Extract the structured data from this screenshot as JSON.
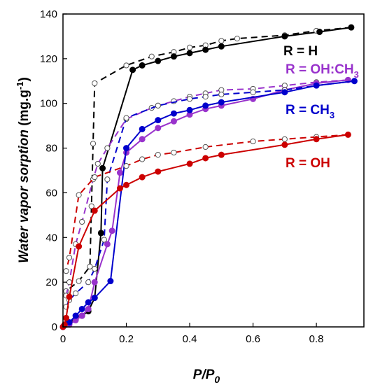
{
  "chart_data": {
    "type": "line",
    "xlabel": "P/P",
    "xlabel_sub": "0",
    "ylabel": "Water vapor sorption",
    "ylabel_unit_pre": "(mg.g",
    "ylabel_unit_sup": "-1",
    "ylabel_unit_post": ")",
    "xlim": [
      0,
      0.95
    ],
    "ylim": [
      0,
      140
    ],
    "xticks": [
      "0",
      "0.2",
      "0.4",
      "0.6",
      "0.8"
    ],
    "xtick_values": [
      0,
      0.2,
      0.4,
      0.6,
      0.8
    ],
    "yticks": [
      "0",
      "20",
      "40",
      "60",
      "80",
      "100",
      "120",
      "140"
    ],
    "ytick_values": [
      0,
      20,
      40,
      60,
      80,
      100,
      120,
      140
    ],
    "grid": false,
    "legend": "annotations",
    "series": [
      {
        "name": "R = H",
        "name_main": "R = H",
        "name_sub": "",
        "name_tail": "",
        "color": "#000000",
        "adsorption": [
          [
            0,
            0
          ],
          [
            0.01,
            1
          ],
          [
            0.02,
            2
          ],
          [
            0.04,
            3.5
          ],
          [
            0.06,
            5
          ],
          [
            0.08,
            7
          ],
          [
            0.1,
            13
          ],
          [
            0.12,
            42
          ],
          [
            0.125,
            71
          ],
          [
            0.22,
            115
          ],
          [
            0.25,
            117
          ],
          [
            0.3,
            119
          ],
          [
            0.35,
            121
          ],
          [
            0.4,
            122.5
          ],
          [
            0.45,
            124
          ],
          [
            0.5,
            125.5
          ],
          [
            0.7,
            130
          ],
          [
            0.81,
            132
          ],
          [
            0.91,
            134
          ]
        ],
        "desorption": [
          [
            0.91,
            134
          ],
          [
            0.8,
            132.5
          ],
          [
            0.7,
            130.5
          ],
          [
            0.55,
            129
          ],
          [
            0.5,
            128
          ],
          [
            0.45,
            126
          ],
          [
            0.4,
            125
          ],
          [
            0.35,
            123
          ],
          [
            0.28,
            121
          ],
          [
            0.2,
            117
          ],
          [
            0.1,
            109
          ],
          [
            0.095,
            82
          ],
          [
            0.09,
            54
          ],
          [
            0.085,
            27
          ],
          [
            0.05,
            20.5
          ],
          [
            0.01,
            16
          ]
        ]
      },
      {
        "name": "R = OH:CH3",
        "name_main": "R = OH:CH",
        "name_sub": "3",
        "name_tail": "",
        "color": "#9933cc",
        "adsorption": [
          [
            0,
            0
          ],
          [
            0.02,
            1
          ],
          [
            0.04,
            3
          ],
          [
            0.06,
            5
          ],
          [
            0.08,
            8
          ],
          [
            0.1,
            20
          ],
          [
            0.14,
            37
          ],
          [
            0.155,
            43
          ],
          [
            0.18,
            69
          ],
          [
            0.2,
            78
          ],
          [
            0.25,
            84
          ],
          [
            0.3,
            89
          ],
          [
            0.35,
            92
          ],
          [
            0.4,
            95
          ],
          [
            0.45,
            97.5
          ],
          [
            0.5,
            99
          ],
          [
            0.6,
            102
          ],
          [
            0.7,
            106
          ],
          [
            0.8,
            109
          ],
          [
            0.9,
            110.5
          ]
        ],
        "desorption": [
          [
            0.9,
            110.5
          ],
          [
            0.8,
            109.5
          ],
          [
            0.7,
            108
          ],
          [
            0.6,
            106.5
          ],
          [
            0.5,
            106
          ],
          [
            0.45,
            104.5
          ],
          [
            0.4,
            103
          ],
          [
            0.35,
            101
          ],
          [
            0.3,
            99
          ],
          [
            0.28,
            98
          ],
          [
            0.2,
            93
          ],
          [
            0.14,
            80
          ],
          [
            0.11,
            73
          ],
          [
            0.095,
            66
          ],
          [
            0.06,
            47
          ],
          [
            0.04,
            37
          ],
          [
            0.02,
            20
          ],
          [
            0.01,
            14
          ]
        ]
      },
      {
        "name": "R = CH3",
        "name_main": "R = CH",
        "name_sub": "3",
        "name_tail": "",
        "color": "#0000cc",
        "adsorption": [
          [
            0,
            0
          ],
          [
            0.02,
            2
          ],
          [
            0.04,
            5
          ],
          [
            0.06,
            8
          ],
          [
            0.08,
            11
          ],
          [
            0.1,
            13
          ],
          [
            0.15,
            20.5
          ],
          [
            0.2,
            80
          ],
          [
            0.25,
            88.5
          ],
          [
            0.3,
            92.5
          ],
          [
            0.35,
            95.5
          ],
          [
            0.4,
            97
          ],
          [
            0.45,
            99
          ],
          [
            0.5,
            100.5
          ],
          [
            0.7,
            105
          ],
          [
            0.8,
            108
          ],
          [
            0.92,
            110
          ]
        ],
        "desorption": [
          [
            0.92,
            110
          ],
          [
            0.8,
            108
          ],
          [
            0.7,
            106
          ],
          [
            0.6,
            105
          ],
          [
            0.5,
            104
          ],
          [
            0.45,
            103
          ],
          [
            0.4,
            102
          ],
          [
            0.3,
            99
          ],
          [
            0.2,
            93.5
          ],
          [
            0.14,
            66
          ],
          [
            0.13,
            39
          ],
          [
            0.1,
            26
          ],
          [
            0.08,
            20
          ],
          [
            0.04,
            15
          ],
          [
            0.02,
            12
          ],
          [
            0.01,
            9
          ]
        ]
      },
      {
        "name": "R = OH",
        "name_main": "R = OH",
        "name_sub": "",
        "name_tail": "",
        "color": "#cc0000",
        "adsorption": [
          [
            0,
            0
          ],
          [
            0.005,
            1
          ],
          [
            0.01,
            4
          ],
          [
            0.02,
            13.5
          ],
          [
            0.05,
            36
          ],
          [
            0.1,
            52
          ],
          [
            0.18,
            62
          ],
          [
            0.2,
            63.5
          ],
          [
            0.25,
            67
          ],
          [
            0.3,
            69.5
          ],
          [
            0.4,
            73
          ],
          [
            0.45,
            75.5
          ],
          [
            0.5,
            77
          ],
          [
            0.7,
            81.5
          ],
          [
            0.8,
            84
          ],
          [
            0.9,
            86
          ]
        ],
        "desorption": [
          [
            0.9,
            86
          ],
          [
            0.8,
            85
          ],
          [
            0.7,
            84
          ],
          [
            0.6,
            83
          ],
          [
            0.45,
            80.5
          ],
          [
            0.35,
            78
          ],
          [
            0.3,
            77
          ],
          [
            0.25,
            75
          ],
          [
            0.2,
            72
          ],
          [
            0.1,
            67
          ],
          [
            0.05,
            59
          ],
          [
            0.02,
            31
          ],
          [
            0.01,
            25
          ]
        ]
      }
    ]
  }
}
